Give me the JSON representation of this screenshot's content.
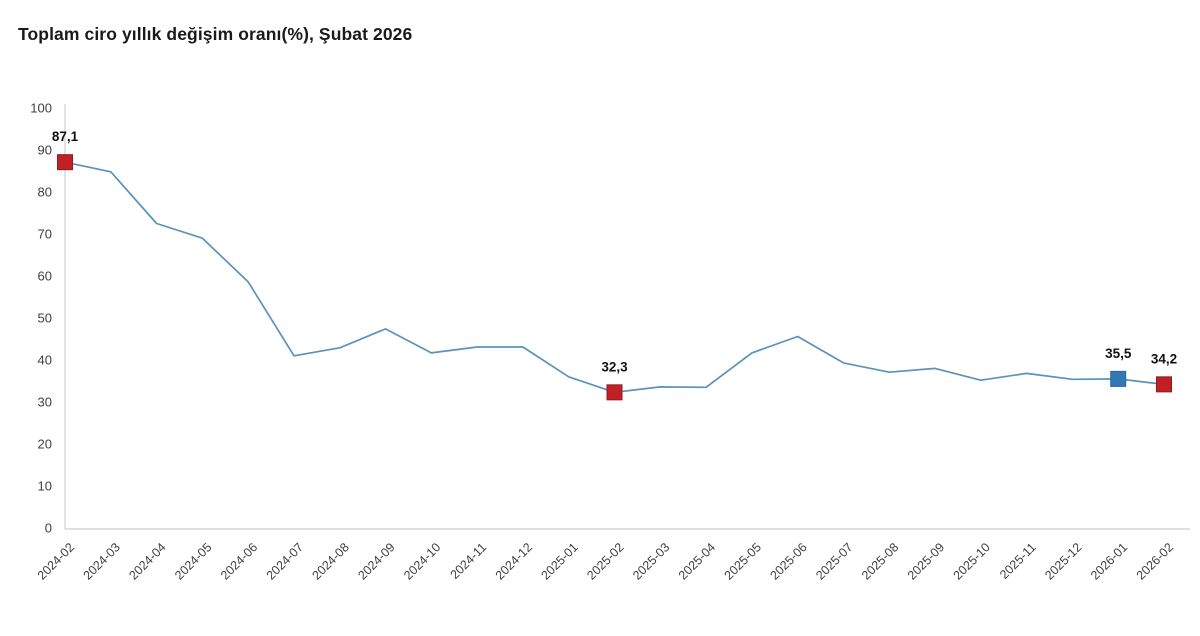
{
  "page": {
    "title": "Toplam ciro yıllık değişim oranı(%), Şubat 2026"
  },
  "chart_data": {
    "type": "line",
    "title": "Toplam ciro yıllık değişim oranı(%), Şubat 2026",
    "xlabel": "",
    "ylabel": "",
    "ylim": [
      0,
      100
    ],
    "ytick_step": 10,
    "ytick_labels": [
      "0",
      "10",
      "20",
      "30",
      "40",
      "50",
      "60",
      "70",
      "80",
      "90",
      "100"
    ],
    "grid": false,
    "legend": "none",
    "categories": [
      "2024-02",
      "2024-03",
      "2024-04",
      "2024-05",
      "2024-06",
      "2024-07",
      "2024-08",
      "2024-09",
      "2024-10",
      "2024-11",
      "2024-12",
      "2025-01",
      "2025-02",
      "2025-03",
      "2025-04",
      "2025-05",
      "2025-06",
      "2025-07",
      "2025-08",
      "2025-09",
      "2025-10",
      "2025-11",
      "2025-12",
      "2026-01",
      "2026-02"
    ],
    "values": [
      87.1,
      84.8,
      72.5,
      69.0,
      58.6,
      41.0,
      42.9,
      47.4,
      41.7,
      43.1,
      43.1,
      36.0,
      32.3,
      33.6,
      33.5,
      41.7,
      45.6,
      39.3,
      37.1,
      38.0,
      35.2,
      36.8,
      35.4,
      35.5,
      34.2
    ],
    "annotations": [
      {
        "index": 0,
        "label": "87,1",
        "marker": "red"
      },
      {
        "index": 12,
        "label": "32,3",
        "marker": "red"
      },
      {
        "index": 23,
        "label": "35,5",
        "marker": "blue"
      },
      {
        "index": 24,
        "label": "34,2",
        "marker": "red"
      }
    ],
    "colors": {
      "line": "#5b92bd",
      "marker_red": "#bf2126",
      "marker_red_stroke": "#921a1f",
      "marker_blue": "#3278b2",
      "marker_blue_stroke": "#276a9e",
      "axis": "#d6d6d6",
      "tick_text": "#3f3f3f",
      "value_label_text": "#111111"
    }
  }
}
